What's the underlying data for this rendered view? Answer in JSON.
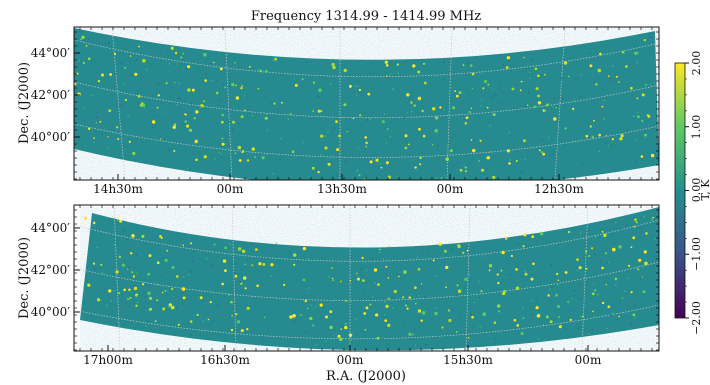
{
  "chart_data": {
    "type": "heatmap",
    "title": "Frequency 1314.99 - 1414.99 MHz",
    "colorbar": {
      "label": "T, K",
      "range": [
        -2.0,
        2.0
      ],
      "ticks": [
        2.0,
        1.0,
        0.0,
        -1.0,
        -2.0
      ],
      "tick_labels": [
        "2.00",
        "1.00",
        "0.00",
        "−1.00",
        "−2.00"
      ],
      "colormap": "viridis",
      "position": "right"
    },
    "panels": [
      {
        "ylabel": "Dec. (J2000)",
        "xlabel": "",
        "dec_ticks": [
          44,
          42,
          40
        ],
        "dec_tick_labels": [
          "44°00′",
          "42°00′",
          "40°00′"
        ],
        "ra_ticks_hours": [
          14.5,
          14.0,
          13.5,
          13.0,
          12.5
        ],
        "ra_tick_labels": [
          "14h30m",
          "00m",
          "13h30m",
          "00m",
          "12h30m"
        ],
        "ra_range_hours": [
          14.75,
          12.05
        ],
        "dec_range_deg": [
          38.5,
          45.0
        ],
        "grid": true,
        "background_value": 0.0
      },
      {
        "ylabel": "Dec. (J2000)",
        "xlabel": "R.A. (J2000)",
        "dec_ticks": [
          44,
          42,
          40
        ],
        "dec_tick_labels": [
          "44°00′",
          "42°00′",
          "40°00′"
        ],
        "ra_ticks_hours": [
          17.0,
          16.5,
          16.0,
          15.5,
          15.0
        ],
        "ra_tick_labels": [
          "17h00m",
          "16h30m",
          "00m",
          "15h30m",
          "00m"
        ],
        "ra_range_hours": [
          17.25,
          14.6
        ],
        "dec_range_deg": [
          38.5,
          45.0
        ],
        "grid": true,
        "background_value": 0.0
      }
    ]
  }
}
